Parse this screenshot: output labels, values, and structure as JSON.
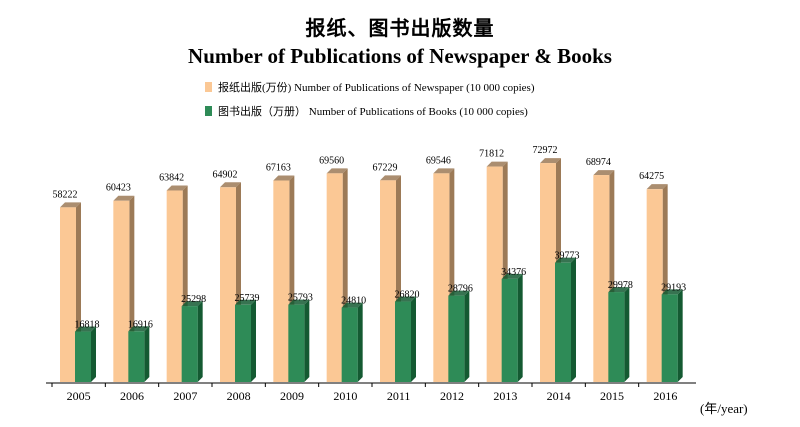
{
  "header": {
    "title_zh": "报纸、图书出版数量",
    "title_en": "Number of Publications of Newspaper & Books"
  },
  "legend": {
    "items": [
      {
        "label": "报纸出版(万份) Number of Publications of Newspaper (10 000 copies)",
        "color": "#FBC895"
      },
      {
        "label": "图书出版（万册） Number of Publications of Books (10 000 copies)",
        "color": "#2E8B57"
      }
    ]
  },
  "unit_label": "(年/year)",
  "chart_data": {
    "type": "bar",
    "categories": [
      "2005",
      "2006",
      "2007",
      "2008",
      "2009",
      "2010",
      "2011",
      "2012",
      "2013",
      "2014",
      "2015",
      "2016"
    ],
    "series": [
      {
        "name": "报纸出版(万份) Number of Publications of Newspaper (10 000 copies)",
        "values": [
          58222,
          60423,
          63842,
          64902,
          67163,
          69560,
          67229,
          69546,
          71812,
          72972,
          68974,
          64275
        ],
        "color": "#FBC895",
        "side_color": "#9C7A57"
      },
      {
        "name": "图书出版（万册） Number of Publications of Books (10 000 copies)",
        "values": [
          16818,
          16916,
          25298,
          25739,
          25793,
          24810,
          26820,
          28796,
          34376,
          39773,
          29978,
          29193
        ],
        "color": "#2E8B57",
        "side_color": "#145A32"
      }
    ],
    "ylim": [
      0,
      88000
    ],
    "grid": false,
    "legend_position": "top-left",
    "data_labels": true
  }
}
